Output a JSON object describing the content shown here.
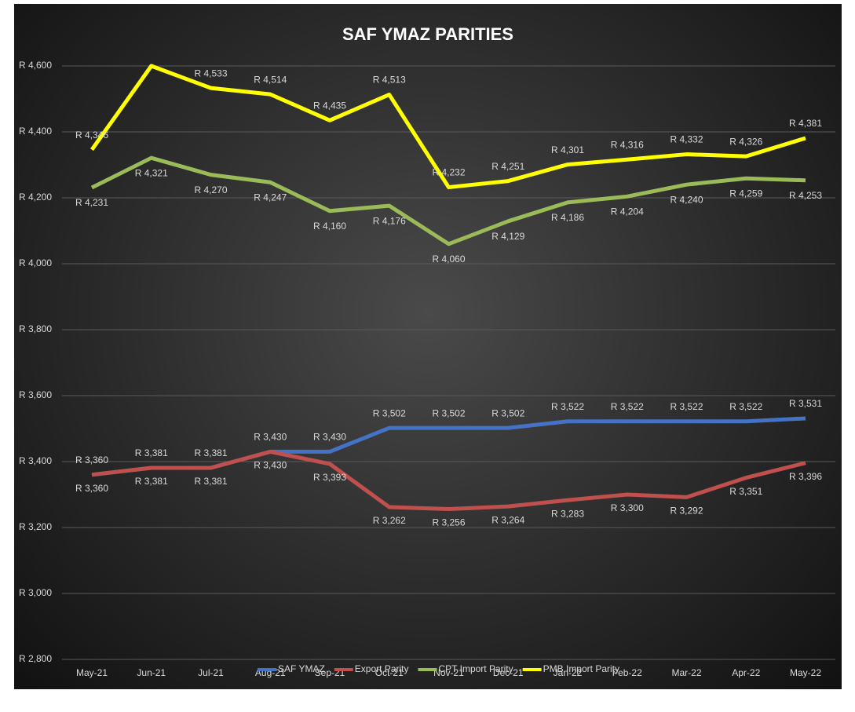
{
  "chart_data": {
    "type": "line",
    "title": "SAF YMAZ PARITIES",
    "categories": [
      "May-21",
      "Jun-21",
      "Jul-21",
      "Aug-21",
      "Sep-21",
      "Oct-21",
      "Nov-21",
      "Dec-21",
      "Jan-22",
      "Feb-22",
      "Mar-22",
      "Apr-22",
      "May-22"
    ],
    "ylim": [
      2800,
      4600
    ],
    "yticks": [
      {
        "value": 2800,
        "label": "R 2,800"
      },
      {
        "value": 3000,
        "label": "R 3,000"
      },
      {
        "value": 3200,
        "label": "R 3,200"
      },
      {
        "value": 3400,
        "label": "R 3,400"
      },
      {
        "value": 3600,
        "label": "R 3,600"
      },
      {
        "value": 3800,
        "label": "R 3,800"
      },
      {
        "value": 4000,
        "label": "R 4,000"
      },
      {
        "value": 4200,
        "label": "R 4,200"
      },
      {
        "value": 4400,
        "label": "R 4,400"
      },
      {
        "value": 4600,
        "label": "R 4,600"
      }
    ],
    "grid": true,
    "legend": "bottom",
    "series": [
      {
        "name": "SAF YMAZ",
        "color": "#4472c4",
        "values": [
          3360,
          3381,
          3381,
          3430,
          3430,
          3502,
          3502,
          3502,
          3522,
          3522,
          3522,
          3522,
          3531
        ],
        "value_labels": [
          "R 3,360",
          "R 3,381",
          "R 3,381",
          "R 3,430",
          "R 3,430",
          "R 3,502",
          "R 3,502",
          "R 3,502",
          "R 3,522",
          "R 3,522",
          "R 3,522",
          "R 3,522",
          "R 3,531"
        ]
      },
      {
        "name": "Export Parity",
        "color": "#c0504d",
        "values": [
          3360,
          3381,
          3381,
          3430,
          3393,
          3262,
          3256,
          3264,
          3283,
          3300,
          3292,
          3351,
          3396
        ],
        "value_labels": [
          "R 3,360",
          "R 3,381",
          "R 3,381",
          "R 3,430",
          "R 3,393",
          "R 3,262",
          "R 3,256",
          "R 3,264",
          "R 3,283",
          "R 3,300",
          "R 3,292",
          "R 3,351",
          "R 3,396"
        ]
      },
      {
        "name": "CPT Import Parity",
        "color": "#9bbb59",
        "values": [
          4231,
          4321,
          4270,
          4247,
          4160,
          4176,
          4060,
          4129,
          4186,
          4204,
          4240,
          4259,
          4253
        ],
        "value_labels": [
          "R 4,231",
          "R 4,321",
          "R 4,270",
          "R 4,247",
          "R 4,160",
          "R 4,176",
          "R 4,060",
          "R 4,129",
          "R 4,186",
          "R 4,204",
          "R 4,240",
          "R 4,259",
          "R 4,253"
        ]
      },
      {
        "name": "PMB Import Parity",
        "color": "#ffff00",
        "values": [
          4346,
          4600,
          4533,
          4514,
          4435,
          4513,
          4232,
          4251,
          4301,
          4316,
          4332,
          4326,
          4381
        ],
        "value_labels": [
          "R 4,346",
          null,
          "R 4,533",
          "R 4,514",
          "R 4,435",
          "R 4,513",
          "R 4,232",
          "R 4,251",
          "R 4,301",
          "R 4,316",
          "R 4,332",
          "R 4,326",
          "R 4,381"
        ]
      }
    ]
  }
}
